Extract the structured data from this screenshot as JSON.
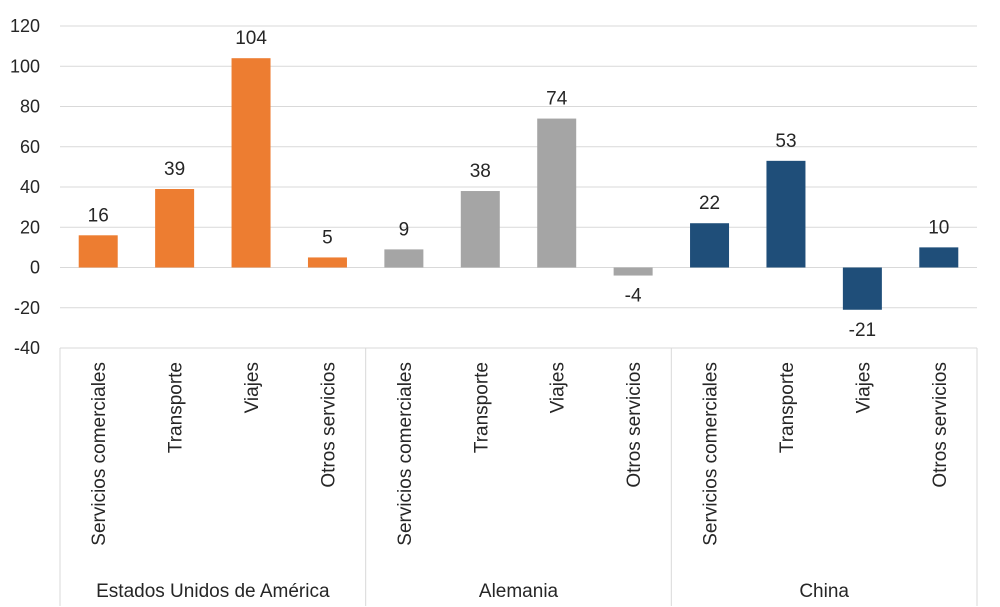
{
  "chart_data": {
    "type": "bar",
    "title": "",
    "xlabel": "",
    "ylabel": "",
    "ylim": [
      -40,
      120
    ],
    "yticks": [
      -40,
      -20,
      0,
      20,
      40,
      60,
      80,
      100,
      120
    ],
    "grid": true,
    "legend": "none",
    "groups": [
      {
        "name": "Estados Unidos de América",
        "color": "#ED7D31",
        "categories": [
          "Servicios comerciales",
          "Transporte",
          "Viajes",
          "Otros servicios"
        ],
        "values": [
          16,
          39,
          104,
          5
        ]
      },
      {
        "name": "Alemania",
        "color": "#A5A5A5",
        "categories": [
          "Servicios comerciales",
          "Transporte",
          "Viajes",
          "Otros servicios"
        ],
        "values": [
          9,
          38,
          74,
          -4
        ]
      },
      {
        "name": "China",
        "color": "#1F4E79",
        "categories": [
          "Servicios comerciales",
          "Transporte",
          "Viajes",
          "Otros servicios"
        ],
        "values": [
          22,
          53,
          -21,
          10
        ]
      }
    ]
  }
}
